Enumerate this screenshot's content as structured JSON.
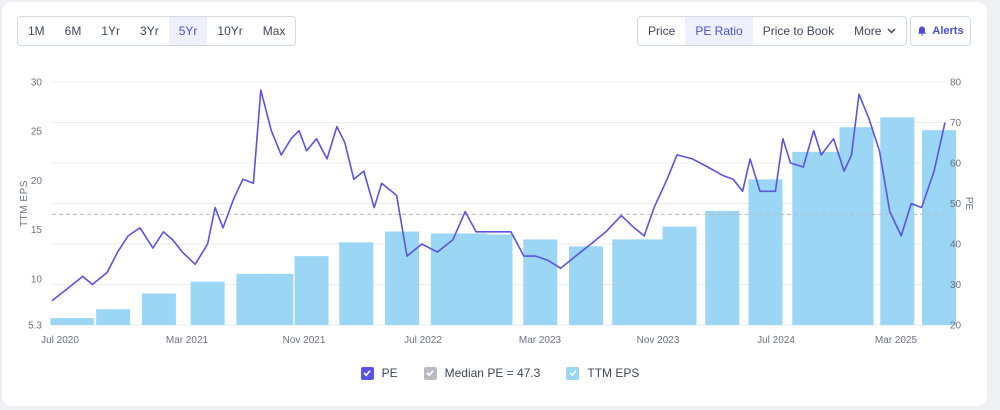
{
  "ranges": [
    "1M",
    "6M",
    "1Yr",
    "3Yr",
    "5Yr",
    "10Yr",
    "Max"
  ],
  "active_range": "5Yr",
  "metrics": [
    "Price",
    "PE Ratio",
    "Price to Book"
  ],
  "active_metric": "PE Ratio",
  "more_label": "More",
  "alerts_label": "Alerts",
  "legend": {
    "pe": "PE",
    "median": "Median PE = 47.3",
    "eps": "TTM EPS"
  },
  "colors": {
    "pe_line": "#5b52e6",
    "eps_bar": "#9bd6f4",
    "median_line": "#b9bcc3",
    "accent": "#4b4fd8"
  },
  "chart_data": {
    "type": "bar+line",
    "left_axis": {
      "label": "TTM EPS",
      "ticks": [
        5.3,
        10,
        15,
        20,
        25,
        30
      ],
      "range": [
        5.3,
        30
      ]
    },
    "right_axis": {
      "label": "PE",
      "ticks": [
        20,
        30,
        40,
        50,
        60,
        70,
        80
      ],
      "range": [
        20,
        80
      ]
    },
    "x_ticks": [
      "Jul 2020",
      "Mar 2021",
      "Nov 2021",
      "Jul 2022",
      "Mar 2023",
      "Nov 2023",
      "Jul 2024",
      "Mar 2025"
    ],
    "x_range": [
      "2020-07-01",
      "2025-06-01"
    ],
    "median_pe": 47.3,
    "eps_series": {
      "name": "TTM EPS",
      "bars": [
        {
          "date": "2020-08-01",
          "value": 6.0
        },
        {
          "date": "2020-08-20",
          "value": 6.0
        },
        {
          "date": "2020-11-01",
          "value": 6.9
        },
        {
          "date": "2021-02-01",
          "value": 8.5
        },
        {
          "date": "2021-05-10",
          "value": 9.7
        },
        {
          "date": "2021-08-10",
          "value": 10.5
        },
        {
          "date": "2021-09-25",
          "value": 10.5
        },
        {
          "date": "2021-12-05",
          "value": 12.3
        },
        {
          "date": "2022-03-05",
          "value": 13.7
        },
        {
          "date": "2022-06-05",
          "value": 14.8
        },
        {
          "date": "2022-09-05",
          "value": 14.6
        },
        {
          "date": "2022-10-20",
          "value": 14.6
        },
        {
          "date": "2022-12-10",
          "value": 14.5
        },
        {
          "date": "2023-03-10",
          "value": 14.0
        },
        {
          "date": "2023-06-10",
          "value": 13.3
        },
        {
          "date": "2023-09-05",
          "value": 14.0
        },
        {
          "date": "2023-10-20",
          "value": 14.0
        },
        {
          "date": "2023-12-15",
          "value": 15.3
        },
        {
          "date": "2024-03-10",
          "value": 16.9
        },
        {
          "date": "2024-06-05",
          "value": 20.1
        },
        {
          "date": "2024-09-01",
          "value": 22.9
        },
        {
          "date": "2024-10-10",
          "value": 22.9
        },
        {
          "date": "2024-12-05",
          "value": 25.4
        },
        {
          "date": "2025-02-25",
          "value": 26.4
        },
        {
          "date": "2025-05-20",
          "value": 25.1
        }
      ]
    },
    "pe_series": {
      "name": "PE",
      "points": [
        [
          "2020-07-01",
          26
        ],
        [
          "2020-08-01",
          29
        ],
        [
          "2020-09-01",
          32
        ],
        [
          "2020-09-20",
          30
        ],
        [
          "2020-10-20",
          33
        ],
        [
          "2020-11-10",
          38
        ],
        [
          "2020-12-01",
          42
        ],
        [
          "2020-12-25",
          44
        ],
        [
          "2021-01-20",
          39
        ],
        [
          "2021-02-10",
          43
        ],
        [
          "2021-03-01",
          41
        ],
        [
          "2021-03-20",
          38
        ],
        [
          "2021-04-15",
          35
        ],
        [
          "2021-05-10",
          40
        ],
        [
          "2021-05-25",
          49
        ],
        [
          "2021-06-10",
          44
        ],
        [
          "2021-07-01",
          51
        ],
        [
          "2021-07-20",
          56
        ],
        [
          "2021-08-10",
          55
        ],
        [
          "2021-08-25",
          78
        ],
        [
          "2021-09-15",
          68
        ],
        [
          "2021-10-05",
          62
        ],
        [
          "2021-10-25",
          66
        ],
        [
          "2021-11-10",
          68
        ],
        [
          "2021-11-25",
          63
        ],
        [
          "2021-12-15",
          66
        ],
        [
          "2022-01-05",
          61
        ],
        [
          "2022-01-25",
          69
        ],
        [
          "2022-02-10",
          65
        ],
        [
          "2022-02-28",
          56
        ],
        [
          "2022-03-20",
          58
        ],
        [
          "2022-04-10",
          49
        ],
        [
          "2022-04-25",
          55
        ],
        [
          "2022-05-25",
          52
        ],
        [
          "2022-06-15",
          37
        ],
        [
          "2022-07-15",
          40
        ],
        [
          "2022-08-15",
          38
        ],
        [
          "2022-09-15",
          41
        ],
        [
          "2022-10-10",
          48
        ],
        [
          "2022-11-01",
          43
        ],
        [
          "2022-12-01",
          43
        ],
        [
          "2023-01-10",
          43
        ],
        [
          "2023-02-05",
          37
        ],
        [
          "2023-03-01",
          37
        ],
        [
          "2023-03-25",
          36
        ],
        [
          "2023-04-20",
          34
        ],
        [
          "2023-05-20",
          37
        ],
        [
          "2023-06-20",
          40
        ],
        [
          "2023-07-20",
          43
        ],
        [
          "2023-08-20",
          47
        ],
        [
          "2023-09-15",
          44
        ],
        [
          "2023-10-05",
          42
        ],
        [
          "2023-10-25",
          49
        ],
        [
          "2023-11-20",
          56
        ],
        [
          "2023-12-10",
          62
        ],
        [
          "2024-01-10",
          61
        ],
        [
          "2024-02-10",
          59
        ],
        [
          "2024-03-10",
          57
        ],
        [
          "2024-04-01",
          56
        ],
        [
          "2024-04-20",
          53
        ],
        [
          "2024-05-05",
          61
        ],
        [
          "2024-05-25",
          53
        ],
        [
          "2024-06-25",
          53
        ],
        [
          "2024-07-10",
          66
        ],
        [
          "2024-07-25",
          60
        ],
        [
          "2024-08-20",
          59
        ],
        [
          "2024-09-10",
          68
        ],
        [
          "2024-09-25",
          62
        ],
        [
          "2024-10-20",
          66
        ],
        [
          "2024-11-10",
          58
        ],
        [
          "2024-11-25",
          62
        ],
        [
          "2024-12-10",
          77
        ],
        [
          "2024-12-30",
          71
        ],
        [
          "2025-01-20",
          63
        ],
        [
          "2025-02-10",
          48
        ],
        [
          "2025-03-05",
          42
        ],
        [
          "2025-03-25",
          50
        ],
        [
          "2025-04-15",
          49
        ],
        [
          "2025-05-10",
          58
        ],
        [
          "2025-06-01",
          70
        ]
      ]
    }
  }
}
